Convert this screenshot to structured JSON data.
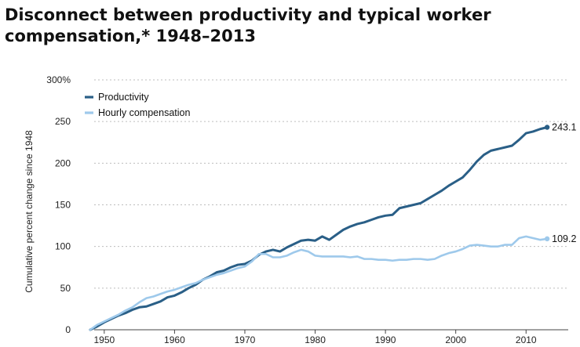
{
  "chart_data": {
    "type": "line",
    "title": "Disconnect between productivity and typical worker compensation,* 1948–2013",
    "ylabel": "Cumulative percent change since 1948",
    "xlabel": "",
    "xlim": [
      1946,
      2016
    ],
    "ylim": [
      0,
      300
    ],
    "xticks": [
      1950,
      1960,
      1970,
      1980,
      1990,
      2000,
      2010
    ],
    "xtick_labels": [
      "1950",
      "1960",
      "1970",
      "1980",
      "1990",
      "2000",
      "2010"
    ],
    "yticks": [
      0,
      50,
      100,
      150,
      200,
      250,
      300
    ],
    "ytick_labels": [
      "0",
      "50",
      "100",
      "150",
      "200",
      "250",
      "300%"
    ],
    "grid": "horizontal-dotted",
    "legend": "top-left",
    "series": [
      {
        "name": "Productivity",
        "color": "#2a5f87",
        "end_label": "243.1",
        "x": [
          1948,
          1949,
          1950,
          1951,
          1952,
          1953,
          1954,
          1955,
          1956,
          1957,
          1958,
          1959,
          1960,
          1961,
          1962,
          1963,
          1964,
          1965,
          1966,
          1967,
          1968,
          1969,
          1970,
          1971,
          1972,
          1973,
          1974,
          1975,
          1976,
          1977,
          1978,
          1979,
          1980,
          1981,
          1982,
          1983,
          1984,
          1985,
          1986,
          1987,
          1988,
          1989,
          1990,
          1991,
          1992,
          1993,
          1994,
          1995,
          1996,
          1997,
          1998,
          1999,
          2000,
          2001,
          2002,
          2003,
          2004,
          2005,
          2006,
          2007,
          2008,
          2009,
          2010,
          2011,
          2012,
          2013
        ],
        "y": [
          0,
          4,
          9,
          13,
          17,
          20,
          24,
          27,
          28,
          31,
          34,
          39,
          41,
          45,
          50,
          54,
          60,
          64,
          69,
          71,
          75,
          78,
          79,
          83,
          90,
          94,
          96,
          94,
          99,
          103,
          107,
          108,
          107,
          112,
          108,
          114,
          120,
          124,
          127,
          129,
          132,
          135,
          137,
          138,
          146,
          148,
          150,
          152,
          157,
          162,
          167,
          173,
          178,
          183,
          192,
          202,
          210,
          215,
          217,
          219,
          221,
          228,
          236,
          238,
          241,
          243.1
        ]
      },
      {
        "name": "Hourly compensation",
        "color": "#9ec9eb",
        "end_label": "109.2",
        "x": [
          1948,
          1949,
          1950,
          1951,
          1952,
          1953,
          1954,
          1955,
          1956,
          1957,
          1958,
          1959,
          1960,
          1961,
          1962,
          1963,
          1964,
          1965,
          1966,
          1967,
          1968,
          1969,
          1970,
          1971,
          1972,
          1973,
          1974,
          1975,
          1976,
          1977,
          1978,
          1979,
          1980,
          1981,
          1982,
          1983,
          1984,
          1985,
          1986,
          1987,
          1988,
          1989,
          1990,
          1991,
          1992,
          1993,
          1994,
          1995,
          1996,
          1997,
          1998,
          1999,
          2000,
          2001,
          2002,
          2003,
          2004,
          2005,
          2006,
          2007,
          2008,
          2009,
          2010,
          2011,
          2012,
          2013
        ],
        "y": [
          0,
          6,
          10,
          14,
          18,
          23,
          27,
          33,
          38,
          40,
          43,
          46,
          48,
          51,
          54,
          56,
          60,
          63,
          66,
          68,
          71,
          74,
          76,
          82,
          91,
          91,
          87,
          87,
          89,
          93,
          96,
          94,
          89,
          88,
          88,
          88,
          88,
          87,
          88,
          85,
          85,
          84,
          84,
          83,
          84,
          84,
          85,
          85,
          84,
          85,
          89,
          92,
          94,
          97,
          101,
          102,
          101,
          100,
          100,
          102,
          102,
          110,
          112,
          110,
          108,
          109.2
        ]
      }
    ]
  }
}
